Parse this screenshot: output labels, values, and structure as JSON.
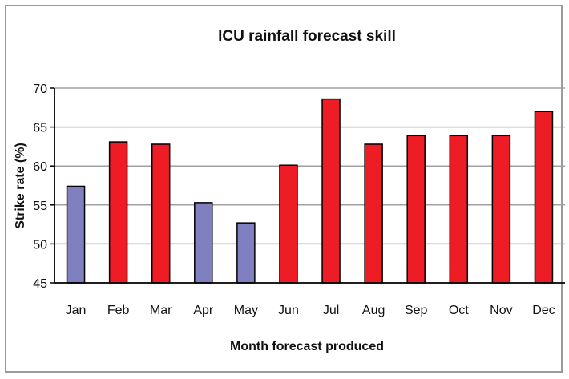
{
  "chart_data": {
    "type": "bar",
    "title": "ICU rainfall forecast skill",
    "xlabel": "Month forecast produced",
    "ylabel": "Strike rate (%)",
    "ylim": [
      45,
      70
    ],
    "yticks": [
      45,
      50,
      55,
      60,
      65,
      70
    ],
    "grid": true,
    "categories": [
      "Jan",
      "Feb",
      "Mar",
      "Apr",
      "May",
      "Jun",
      "Jul",
      "Aug",
      "Sep",
      "Oct",
      "Nov",
      "Dec"
    ],
    "values": [
      57.4,
      63.1,
      62.8,
      55.3,
      52.7,
      60.1,
      68.6,
      62.8,
      63.9,
      63.9,
      63.9,
      67.0
    ],
    "colors": [
      "#8080c0",
      "#ee1c24",
      "#ee1c24",
      "#8080c0",
      "#8080c0",
      "#ee1c24",
      "#ee1c24",
      "#ee1c24",
      "#ee1c24",
      "#ee1c24",
      "#ee1c24",
      "#ee1c24"
    ],
    "gridline_color": "#a0a0a0",
    "bar_stroke_color": "#000000"
  }
}
